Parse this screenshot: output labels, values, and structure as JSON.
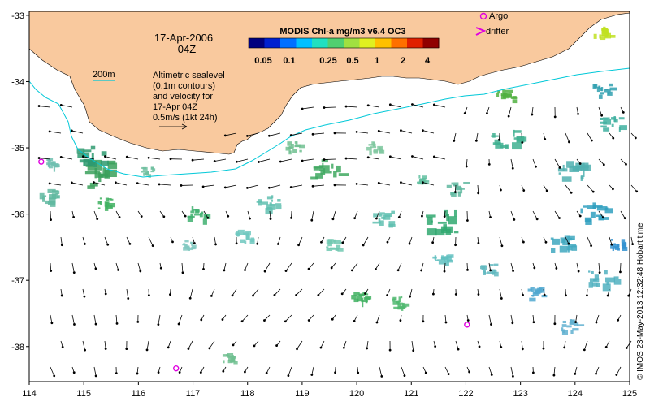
{
  "date_label": {
    "line1": "17-Apr-2006",
    "line2": "04Z"
  },
  "contour_label": "200m",
  "sealevel_note": [
    "Altimetric sealevel",
    "(0.1m contours)",
    "and velocity for",
    "17-Apr 04Z",
    "0.5m/s (1kt 24h)"
  ],
  "colorbar": {
    "title": "MODIS Chl-a mg/m3 v6.4 OC3",
    "ticks": [
      "0.05",
      "0.1",
      "0.25",
      "0.5",
      "1",
      "2",
      "4"
    ],
    "colors": [
      "#00007f",
      "#0020d0",
      "#0070ff",
      "#00c0ff",
      "#20e0c0",
      "#50d070",
      "#a0e040",
      "#e0f020",
      "#ffc000",
      "#ff7000",
      "#e02000",
      "#900000"
    ]
  },
  "legend": {
    "argo": "Argo",
    "drifter": "drifter"
  },
  "credit": "© IMOS 23-May-2013 12:32:48 Hobart time",
  "axes": {
    "lon_ticks": [
      "114",
      "115",
      "116",
      "117",
      "118",
      "119",
      "120",
      "121",
      "122",
      "123",
      "124",
      "125"
    ],
    "lat_ticks": [
      "-33",
      "-34",
      "-35",
      "-36",
      "-37",
      "-38"
    ],
    "lon_range": [
      114,
      125
    ],
    "lat_range": [
      -38.53,
      -32.94
    ]
  },
  "colors": {
    "land": "#f9c99e",
    "ocean": "#ffffff",
    "isobath": "#00c8d8",
    "argo": "#e000e0"
  },
  "argo_floats": [
    {
      "lon": 114.22,
      "lat": -35.21
    },
    {
      "lon": 116.69,
      "lat": -38.33
    },
    {
      "lon": 122.02,
      "lat": -37.67
    }
  ]
}
